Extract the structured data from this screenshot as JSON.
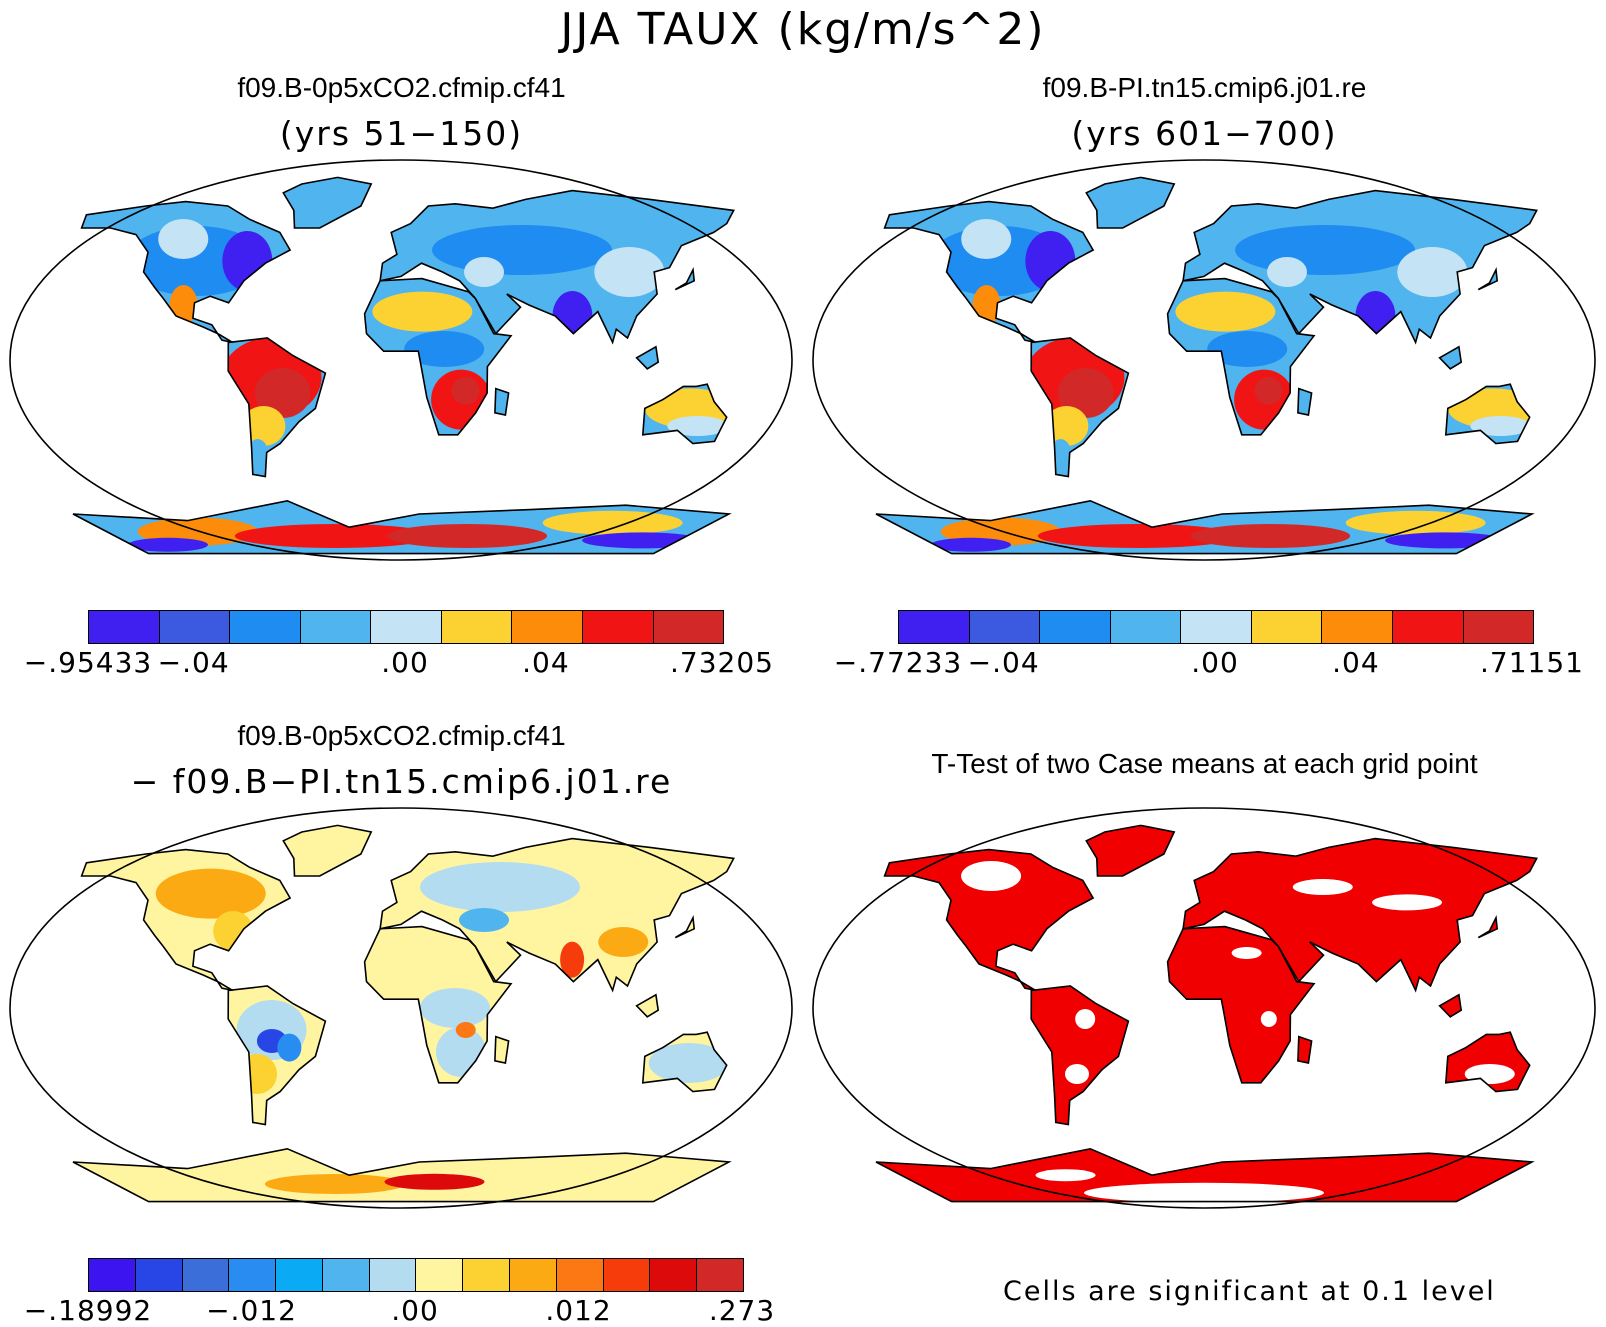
{
  "figure": {
    "title": "JJA TAUX (kg/m/s^2)"
  },
  "panels": [
    {
      "id": "case1",
      "title": "f09.B-0p5xCO2.cfmip.cf41",
      "subtitle": "(yrs 51−150)",
      "colorbar": {
        "colors": [
          "#4020f0",
          "#3c5ae0",
          "#1e8cf0",
          "#50b4ee",
          "#c4e4f6",
          "#fcd232",
          "#fc8c0a",
          "#f01414",
          "#d22828"
        ],
        "tick_labels": [
          "−.95433",
          "−.04",
          ".00",
          ".04",
          ".73205"
        ]
      }
    },
    {
      "id": "case2",
      "title": "f09.B-PI.tn15.cmip6.j01.re",
      "subtitle": "(yrs 601−700)",
      "colorbar": {
        "colors": [
          "#4020f0",
          "#3c5ae0",
          "#1e8cf0",
          "#50b4ee",
          "#c4e4f6",
          "#fcd232",
          "#fc8c0a",
          "#f01414",
          "#d22828"
        ],
        "tick_labels": [
          "−.77233",
          "−.04",
          ".00",
          ".04",
          ".71151"
        ]
      }
    },
    {
      "id": "difference",
      "title": "f09.B-0p5xCO2.cfmip.cf41",
      "subtitle": "− f09.B−PI.tn15.cmip6.j01.re",
      "colorbar": {
        "colors": [
          "#3c14f0",
          "#2846e6",
          "#3c6eda",
          "#288cf0",
          "#0aaaf5",
          "#50b4ee",
          "#b4dcf0",
          "#fff5a0",
          "#fcd232",
          "#fcaa14",
          "#fc7814",
          "#f53c0a",
          "#dc0a0a",
          "#d22828"
        ],
        "tick_labels": [
          "−.18992",
          "−.012",
          ".00",
          ".012",
          ".273"
        ]
      }
    },
    {
      "id": "ttest",
      "title": "T-Test of two Case means at each grid point",
      "subtitle": "",
      "significance_color": "#f00000",
      "note": "Cells are significant at 0.1 level"
    }
  ]
}
